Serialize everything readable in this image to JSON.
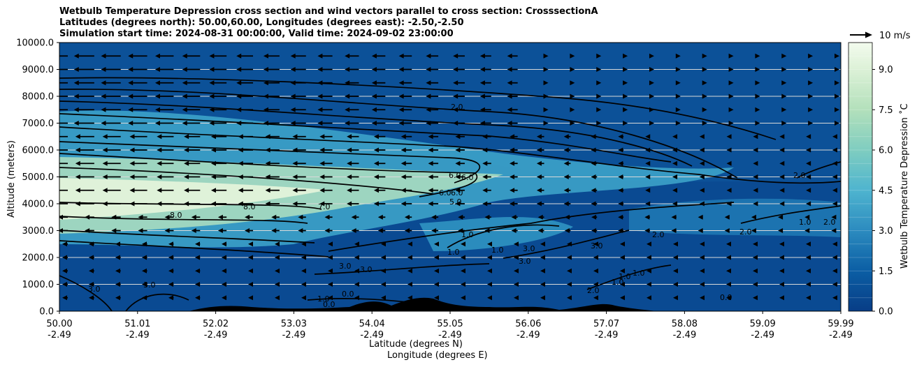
{
  "chart_data": {
    "type": "heatmap",
    "title_lines": [
      "Wetbulb Temperature Depression cross section and wind vectors parallel to cross section: CrosssectionA",
      "Latitudes (degrees north): 50.00,60.00, Longitudes (degrees east): -2.50,-2.50",
      "Simulation start time: 2024-08-31 00:00:00, Valid time: 2024-09-02 23:00:00"
    ],
    "ylabel": "Altitude (meters)",
    "xlabel_line1": "Latitude (degrees N)",
    "xlabel_line2": "Longitude (degrees E)",
    "colorbar_label": "Wetbulb Temperature Depression ˚C",
    "wind_key_label": "10 m/s",
    "ylim": [
      0,
      10000
    ],
    "yticks": [
      "0.0",
      "1000.0",
      "2000.0",
      "3000.0",
      "4000.0",
      "5000.0",
      "6000.0",
      "7000.0",
      "8000.0",
      "9000.0",
      "10000.0"
    ],
    "xticks_lat": [
      "50.00",
      "51.01",
      "52.02",
      "53.03",
      "54.04",
      "55.05",
      "56.06",
      "57.07",
      "58.08",
      "59.09",
      "59.99"
    ],
    "xticks_lon": [
      "-2.49",
      "-2.49",
      "-2.49",
      "-2.49",
      "-2.49",
      "-2.49",
      "-2.49",
      "-2.49",
      "-2.49",
      "-2.49",
      "-2.49"
    ],
    "colorbar_ticks": [
      "0.0",
      "1.5",
      "3.0",
      "4.5",
      "6.0",
      "7.5",
      "9.0"
    ],
    "colorbar_range": [
      0,
      10
    ],
    "contour_labels": [
      "2.0",
      "6.0",
      "6.0",
      "6.0",
      "6.0",
      "5.0",
      "7.0",
      "8.0",
      "8.0",
      "1.0",
      "1.0",
      "1.0",
      "3.0",
      "3.0",
      "3.0",
      "3.0",
      "3.0",
      "2.0",
      "2.0",
      "1.0",
      "1.0",
      "1.0",
      "0.0",
      "0.0",
      "0.0",
      "1.0",
      "2.0",
      "2.0",
      "1.0",
      "2.0",
      "3.0",
      "3.0"
    ],
    "colors": {
      "low": "#0b3e8a",
      "mid": "#3aa3c9",
      "high": "#eaf7e6",
      "terrain": "#000000",
      "contour": "#000000"
    }
  }
}
